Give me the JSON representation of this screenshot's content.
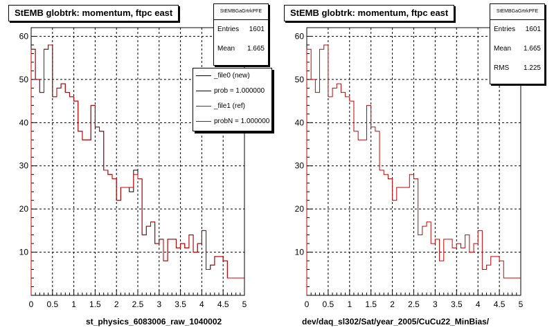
{
  "colors": {
    "new": "#000000",
    "ref": "#cc0000"
  },
  "chart_data": [
    {
      "type": "line",
      "title": "StEMB globtrk: momentum, ftpc east",
      "xlabel": "st_physics_6083006_raw_1040002",
      "ylabel": "",
      "xlim": [
        0,
        5
      ],
      "ylim": [
        0,
        62
      ],
      "xticks": [
        0,
        0.5,
        1,
        1.5,
        2,
        2.5,
        3,
        3.5,
        4,
        4.5,
        5
      ],
      "xtick_labels": [
        "0",
        "0.5",
        "1",
        "1.5",
        "2",
        "2.5",
        "3",
        "3.5",
        "4",
        "4.5",
        "5"
      ],
      "yticks": [
        10,
        20,
        30,
        40,
        50,
        60
      ],
      "grid": true,
      "bin_edges": [
        0,
        0.1,
        0.2,
        0.3,
        0.4,
        0.5,
        0.6,
        0.7,
        0.8,
        0.9,
        1.0,
        1.1,
        1.2,
        1.3,
        1.4,
        1.5,
        1.6,
        1.7,
        1.8,
        1.9,
        2.0,
        2.1,
        2.2,
        2.3,
        2.4,
        2.5,
        2.6,
        2.7,
        2.8,
        2.9,
        3.0,
        3.1,
        3.2,
        3.3,
        3.4,
        3.5,
        3.6,
        3.7,
        3.8,
        3.9,
        4.0,
        4.1,
        4.2,
        4.3,
        4.4,
        4.5,
        4.6,
        4.7,
        4.8,
        4.9,
        5.0
      ],
      "series": [
        {
          "name": "_file0 (new)",
          "color": "#000000",
          "values": [
            57,
            50,
            47,
            57,
            58,
            46,
            48,
            49,
            47,
            46,
            45,
            38,
            36,
            36,
            44,
            39,
            38,
            29,
            28,
            27,
            22,
            25,
            25,
            24,
            29,
            27,
            14,
            16,
            17,
            12,
            13,
            8,
            13,
            13,
            11,
            12,
            11,
            14,
            10,
            12,
            15,
            6,
            7,
            9,
            9,
            8,
            4,
            4,
            4,
            4
          ]
        },
        {
          "name": "_file1 (ref)",
          "color": "#cc0000",
          "values": [
            57,
            50,
            47,
            57,
            58,
            46,
            48,
            49,
            47,
            46,
            45,
            38,
            36,
            36,
            44,
            39,
            38,
            29,
            28,
            27,
            22,
            25,
            25,
            25,
            28,
            27,
            14,
            16,
            17,
            12,
            13,
            8,
            13,
            13,
            11,
            12,
            11,
            14,
            10,
            12,
            15,
            6,
            7,
            9,
            9,
            8,
            4,
            4,
            4,
            4
          ]
        }
      ],
      "stats": {
        "header": "StEMBGaGrtrkPFE",
        "entries_label": "Entries",
        "entries": "1601",
        "mean_label": "Mean",
        "mean": "1.665"
      },
      "legend": {
        "placement": "top-right",
        "entries": [
          "_file0 (new)",
          "prob = 1.000000",
          "_file1 (ref)",
          "probN = 1.000000"
        ]
      }
    },
    {
      "type": "line",
      "title": "StEMB globtrk: momentum, ftpc east",
      "xlabel": "dev/daq_sl302/Sat/year_2005/CuCu22_MinBias/",
      "ylabel": "",
      "xlim": [
        0,
        5
      ],
      "ylim": [
        0,
        62
      ],
      "xticks": [
        0,
        0.5,
        1,
        1.5,
        2,
        2.5,
        3,
        3.5,
        4,
        4.5,
        5
      ],
      "xtick_labels": [
        "0",
        "0.5",
        "1",
        "1.5",
        "2",
        "2.5",
        "3",
        "3.5",
        "4",
        "4.5",
        "5"
      ],
      "yticks": [
        10,
        20,
        30,
        40,
        50,
        60
      ],
      "grid": true,
      "bin_edges": [
        0,
        0.1,
        0.2,
        0.3,
        0.4,
        0.5,
        0.6,
        0.7,
        0.8,
        0.9,
        1.0,
        1.1,
        1.2,
        1.3,
        1.4,
        1.5,
        1.6,
        1.7,
        1.8,
        1.9,
        2.0,
        2.1,
        2.2,
        2.3,
        2.4,
        2.5,
        2.6,
        2.7,
        2.8,
        2.9,
        3.0,
        3.1,
        3.2,
        3.3,
        3.4,
        3.5,
        3.6,
        3.7,
        3.8,
        3.9,
        4.0,
        4.1,
        4.2,
        4.3,
        4.4,
        4.5,
        4.6,
        4.7,
        4.8,
        4.9,
        5.0
      ],
      "series": [
        {
          "name": "",
          "color": "#cc0000",
          "values": [
            57,
            50,
            47,
            57,
            58,
            46,
            48,
            49,
            47,
            46,
            45,
            38,
            36,
            36,
            44,
            39,
            38,
            29,
            28,
            27,
            22,
            25,
            25,
            25,
            28,
            27,
            14,
            16,
            17,
            12,
            13,
            8,
            13,
            13,
            11,
            12,
            11,
            14,
            10,
            12,
            15,
            6,
            7,
            9,
            9,
            8,
            4,
            4,
            4,
            4
          ]
        }
      ],
      "stats": {
        "header": "StEMBGaGrtrkPFE",
        "entries_label": "Entries",
        "entries": "1601",
        "mean_label": "Mean",
        "mean": "1.665",
        "rms_label": "RMS",
        "rms": "1.225"
      }
    }
  ]
}
